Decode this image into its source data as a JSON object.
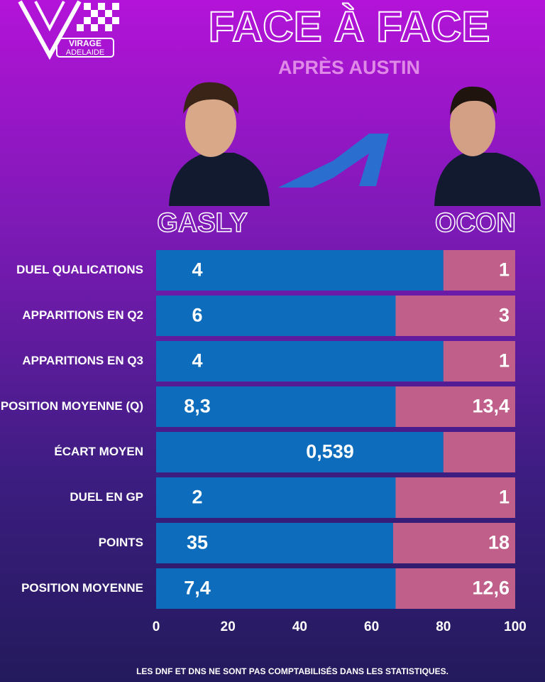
{
  "chart_data": {
    "type": "stacked-barh",
    "title": "FACE À FACE",
    "subtitle": "APRÈS AUSTIN",
    "brand": [
      "VIRAGE",
      "ADELAIDE"
    ],
    "footnote": "LES DNF ET DNS NE SONT PAS COMPTABILISÉS DANS LES STATISTIQUES.",
    "categories": [
      "DUEL QUALICATIONS",
      "APPARITIONS EN Q2",
      "APPARITIONS EN Q3",
      "POSITION MOYENNE (Q)",
      "ÉCART MOYEN",
      "DUEL EN GP",
      "POINTS",
      "POSITION MOYENNE"
    ],
    "series": [
      {
        "name": "GASLY",
        "color": "#0d6dbc",
        "values": [
          80,
          66.7,
          80,
          66.7,
          80,
          66.7,
          66,
          66.7
        ],
        "labels": [
          "4",
          "6",
          "4",
          "8,3",
          "0,539",
          "2",
          "35",
          "7,4"
        ]
      },
      {
        "name": "OCON",
        "color": "#c05f8a",
        "values": [
          20,
          33.3,
          20,
          33.3,
          20,
          33.3,
          34,
          33.3
        ],
        "labels": [
          "1",
          "3",
          "1",
          "13,4",
          null,
          "1",
          "18",
          "12,6"
        ]
      }
    ],
    "xlim": [
      0,
      100
    ],
    "xticks": [
      0,
      20,
      40,
      60,
      80,
      100
    ]
  }
}
